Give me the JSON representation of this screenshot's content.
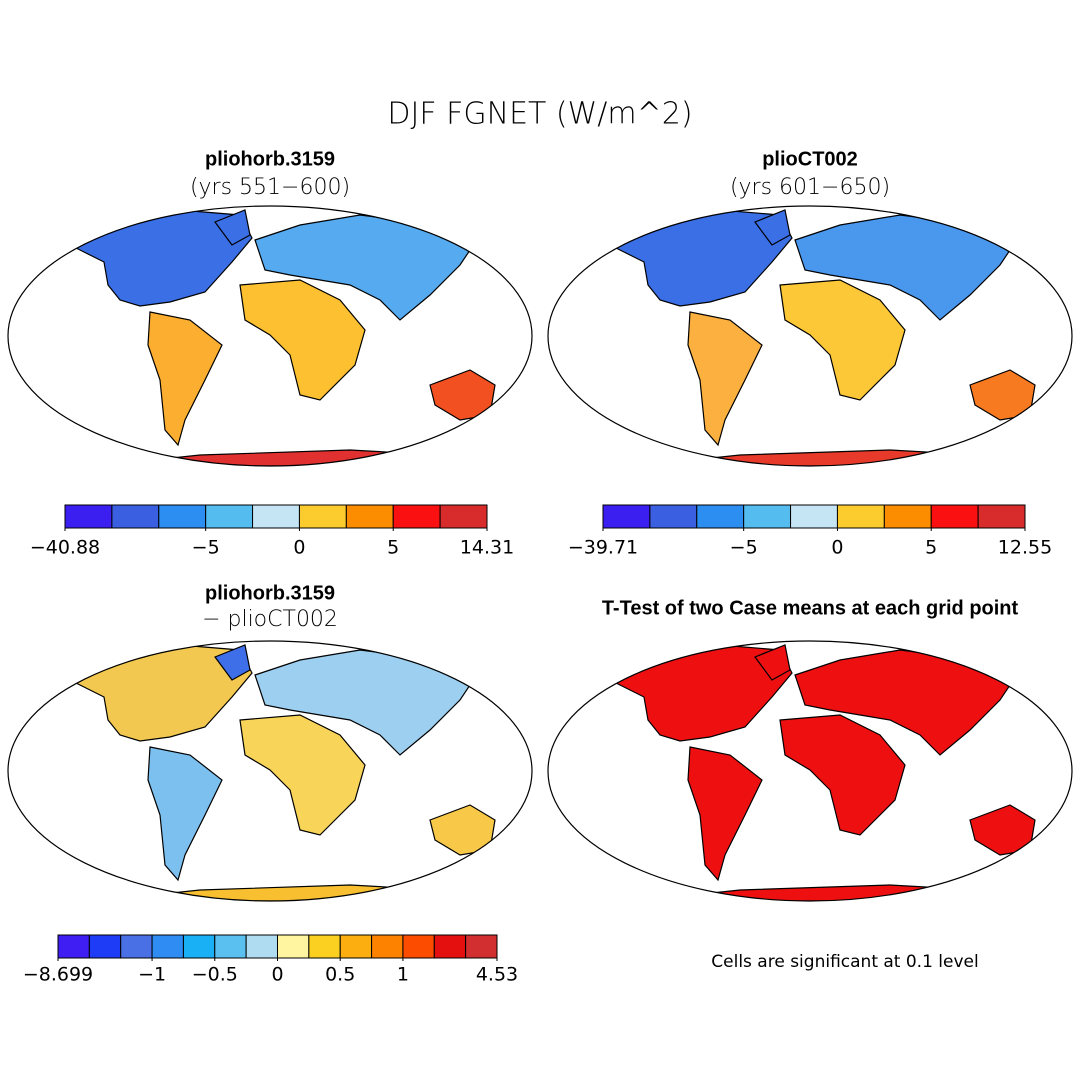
{
  "title": "DJF FGNET (W/m^2)",
  "panels": [
    {
      "title": "pliohorb.3159",
      "subtitle": "(yrs 551−600)",
      "colorbar": {
        "colors": [
          "#3a1ff0",
          "#3a5fe0",
          "#2b8ef0",
          "#55bcf0",
          "#c5e5f5",
          "#fccb2e",
          "#fc8c00",
          "#fa1010",
          "#d82b2b"
        ],
        "bounds": [
          {
            "value": -40.88,
            "label": "−40.88"
          },
          null,
          null,
          {
            "value": -5,
            "label": "−5"
          },
          null,
          0,
          null,
          5,
          null,
          14.31
        ]
      }
    },
    {
      "title": "plioCT002",
      "subtitle": "(yrs 601−650)",
      "colorbar": {
        "colors": [
          "#3a1ff0",
          "#3a5fe0",
          "#2b8ef0",
          "#55bcf0",
          "#c5e5f5",
          "#fccb2e",
          "#fc8c00",
          "#fa1010",
          "#d82b2b"
        ],
        "bounds": [
          {
            "value": -39.71,
            "label": "−39.71"
          },
          null,
          null,
          {
            "value": -5,
            "label": "−5"
          },
          null,
          0,
          null,
          5,
          null,
          12.55
        ]
      }
    },
    {
      "title": "pliohorb.3159",
      "subtitle": "− plioCT002",
      "colorbar": {
        "colors": [
          "#3e1ef2",
          "#1e3cf5",
          "#4a70e6",
          "#2f8cf2",
          "#1ab0f5",
          "#5ac0f0",
          "#b0dcf2",
          "#fff4a0",
          "#fcd020",
          "#fcae10",
          "#fc8200",
          "#fc4c00",
          "#e41010",
          "#d23030"
        ],
        "bounds": [
          {
            "value": -8.699,
            "label": "−8.699"
          },
          null,
          null,
          {
            "value": -1,
            "label": "−1"
          },
          null,
          {
            "value": -0.5,
            "label": "−0.5"
          },
          null,
          0,
          null,
          0.5,
          null,
          1,
          null,
          null,
          4.53
        ]
      }
    },
    {
      "title": "T-Test of two Case means at each grid point",
      "note": "Cells are significant at 0.1 level"
    }
  ]
}
